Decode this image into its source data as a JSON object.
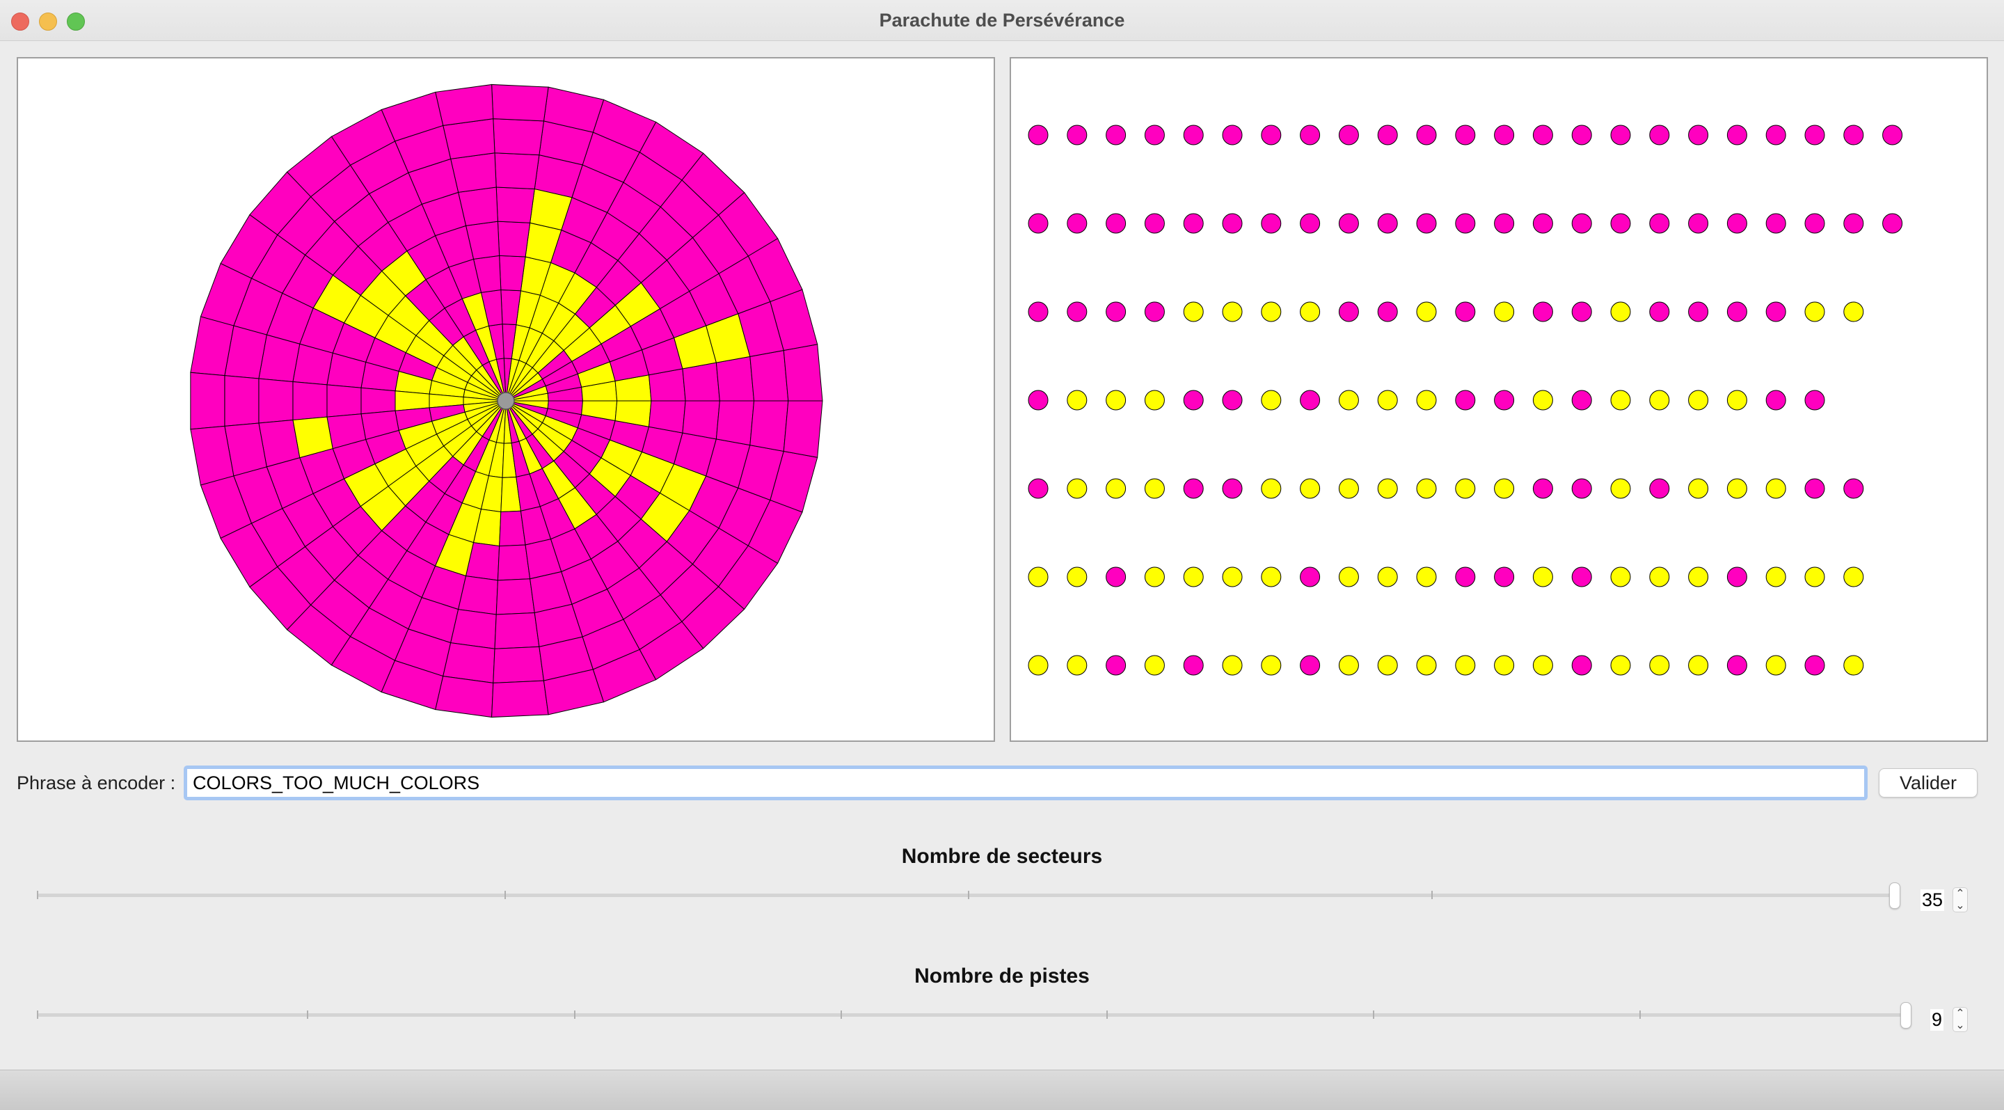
{
  "window": {
    "title": "Parachute de Persévérance"
  },
  "colors": {
    "magenta": "#ff00bf",
    "yellow": "#ffff00",
    "hub": "#9a9a9a",
    "input_focus": "#a7c7f3"
  },
  "parachute": {
    "sectors": 35,
    "tracks": 9,
    "yellow_cells": [
      [
        0,
        0
      ],
      [
        0,
        2
      ],
      [
        0,
        3
      ],
      [
        1,
        0
      ],
      [
        1,
        2
      ],
      [
        1,
        5
      ],
      [
        1,
        6
      ],
      [
        3,
        0
      ],
      [
        3,
        2
      ],
      [
        3,
        3
      ],
      [
        3,
        4
      ],
      [
        4,
        0
      ],
      [
        4,
        1
      ],
      [
        4,
        2
      ],
      [
        5,
        0
      ],
      [
        5,
        1
      ],
      [
        5,
        2
      ],
      [
        5,
        3
      ],
      [
        6,
        0
      ],
      [
        6,
        1
      ],
      [
        6,
        2
      ],
      [
        6,
        3
      ],
      [
        7,
        0
      ],
      [
        7,
        1
      ],
      [
        7,
        2
      ],
      [
        7,
        3
      ],
      [
        7,
        4
      ],
      [
        7,
        5
      ],
      [
        10,
        0
      ],
      [
        10,
        1
      ],
      [
        10,
        2
      ],
      [
        12,
        0
      ],
      [
        12,
        1
      ],
      [
        12,
        4
      ],
      [
        13,
        0
      ],
      [
        13,
        1
      ],
      [
        13,
        2
      ],
      [
        13,
        3
      ],
      [
        13,
        4
      ],
      [
        14,
        0
      ],
      [
        14,
        1
      ],
      [
        14,
        2
      ],
      [
        14,
        3
      ],
      [
        14,
        4
      ],
      [
        14,
        5
      ],
      [
        15,
        0
      ],
      [
        15,
        1
      ],
      [
        16,
        0
      ],
      [
        16,
        1
      ],
      [
        16,
        2
      ],
      [
        17,
        0
      ],
      [
        17,
        1
      ],
      [
        17,
        2
      ],
      [
        18,
        0
      ],
      [
        18,
        5
      ],
      [
        19,
        0
      ],
      [
        19,
        1
      ],
      [
        19,
        2
      ],
      [
        20,
        0
      ],
      [
        20,
        1
      ],
      [
        20,
        2
      ],
      [
        20,
        3
      ],
      [
        20,
        4
      ],
      [
        21,
        0
      ],
      [
        21,
        1
      ],
      [
        21,
        2
      ],
      [
        21,
        3
      ],
      [
        21,
        4
      ],
      [
        22,
        0
      ],
      [
        22,
        1
      ],
      [
        24,
        0
      ],
      [
        24,
        1
      ],
      [
        24,
        2
      ],
      [
        24,
        3
      ],
      [
        24,
        4
      ],
      [
        25,
        0
      ],
      [
        25,
        1
      ],
      [
        25,
        2
      ],
      [
        25,
        3
      ],
      [
        26,
        0
      ],
      [
        26,
        1
      ],
      [
        26,
        2
      ],
      [
        28,
        0
      ],
      [
        28,
        1
      ],
      [
        29,
        2
      ],
      [
        29,
        3
      ],
      [
        30,
        0
      ],
      [
        30,
        1
      ],
      [
        31,
        0
      ],
      [
        31,
        1
      ],
      [
        31,
        3
      ],
      [
        31,
        5
      ],
      [
        32,
        0
      ],
      [
        32,
        1
      ],
      [
        32,
        3
      ],
      [
        32,
        4
      ],
      [
        32,
        5
      ],
      [
        34,
        0
      ],
      [
        34,
        2
      ],
      [
        34,
        3
      ]
    ]
  },
  "bit_grid": {
    "rows": [
      "MMMMMMMMMMMMMMMMMMMMMMM",
      "MMMMMMMMMMMMMMMMMMMMMMM",
      "MMMMYYYYMMYMYMMYMMMMYY",
      "MYYYMMYMYYYMMYMYYYYMM",
      "MYYYMMYYYYYYYMMYMYYYMM",
      "YYMYYYYMYYYMMYMYYYMYYY",
      "YYMYMYYMYYYYYYMYYYMYMY"
    ]
  },
  "phrase": {
    "label": "Phrase à encoder :",
    "value": "COLORS_TOO_MUCH_COLORS",
    "validate_label": "Valider"
  },
  "sliders": {
    "sectors": {
      "title": "Nombre de secteurs",
      "value": "35",
      "fraction": 1.0
    },
    "tracks": {
      "title": "Nombre de pistes",
      "value": "9",
      "fraction": 1.0
    }
  }
}
